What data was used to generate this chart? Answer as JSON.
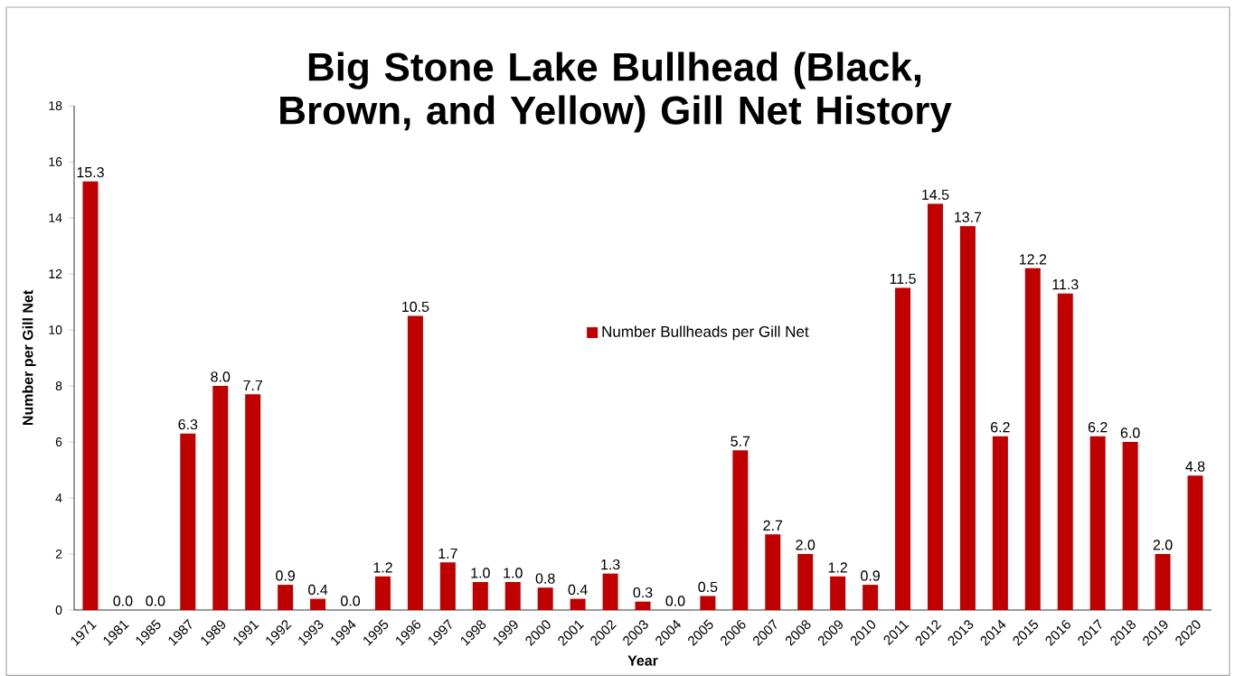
{
  "chart_data": {
    "type": "bar",
    "title": "Big Stone Lake Bullhead (Black, Brown, and Yellow)  Gill Net History",
    "xlabel": "Year",
    "ylabel": "Number per Gill Net",
    "categories": [
      "1971",
      "1981",
      "1985",
      "1987",
      "1989",
      "1991",
      "1992",
      "1993",
      "1994",
      "1995",
      "1996",
      "1997",
      "1998",
      "1999",
      "2000",
      "2001",
      "2002",
      "2003",
      "2004",
      "2005",
      "2006",
      "2007",
      "2008",
      "2009",
      "2010",
      "2011",
      "2012",
      "2013",
      "2014",
      "2015",
      "2016",
      "2017",
      "2018",
      "2019",
      "2020"
    ],
    "series": [
      {
        "name": "Number Bullheads per Gill Net",
        "color": "#c00000",
        "values": [
          15.3,
          0.0,
          0.0,
          6.3,
          8.0,
          7.7,
          0.9,
          0.4,
          0.0,
          1.2,
          10.5,
          1.7,
          1.0,
          1.0,
          0.8,
          0.4,
          1.3,
          0.3,
          0.0,
          0.5,
          5.7,
          2.7,
          2.0,
          1.2,
          0.9,
          11.5,
          14.5,
          13.7,
          6.2,
          12.2,
          11.3,
          6.2,
          6.0,
          2.0,
          4.8
        ],
        "value_labels": [
          "15.3",
          "0.0",
          "0.0",
          "6.3",
          "8.0",
          "7.7",
          "0.9",
          "0.4",
          "0.0",
          "1.2",
          "10.5",
          "1.7",
          "1.0",
          "1.0",
          "0.8",
          "0.4",
          "1.3",
          "0.3",
          "0.0",
          "0.5",
          "5.7",
          "2.7",
          "2.0",
          "1.2",
          "0.9",
          "11.5",
          "14.5",
          "13.7",
          "6.2",
          "12.2",
          "11.3",
          "6.2",
          "6.0",
          "2.0",
          "4.8"
        ]
      }
    ],
    "ylim": [
      0,
      18
    ],
    "yticks": [
      0,
      2,
      4,
      6,
      8,
      10,
      12,
      14,
      16,
      18
    ],
    "grid": false,
    "legend": "center"
  }
}
